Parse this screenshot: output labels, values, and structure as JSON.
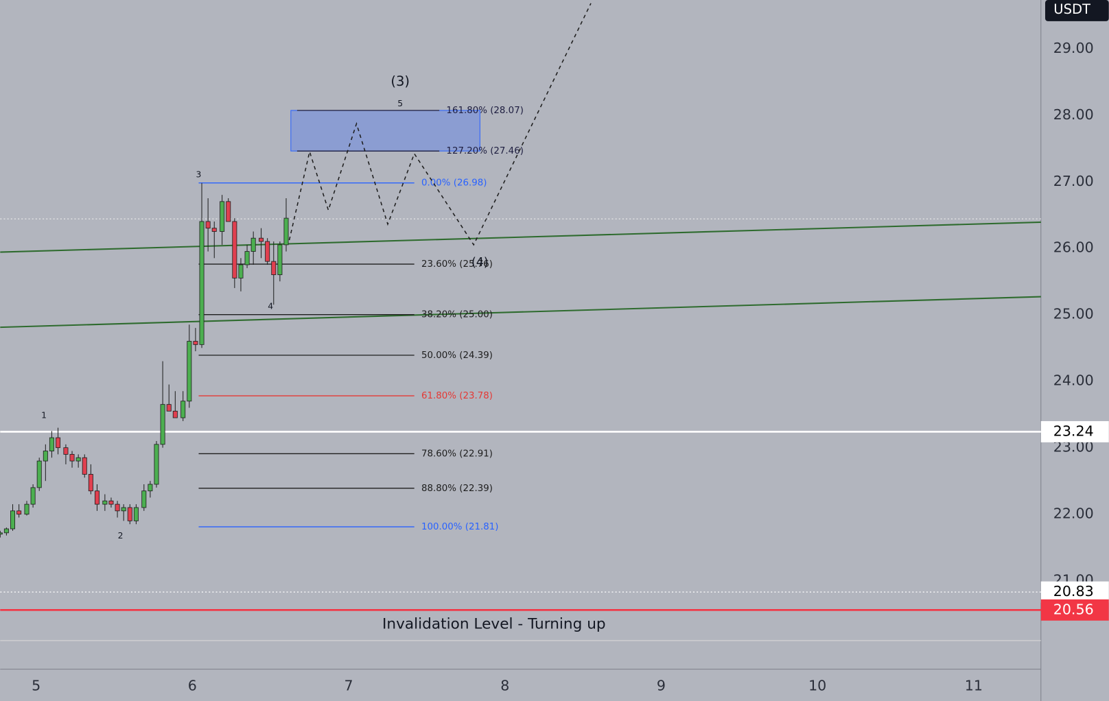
{
  "chart_data": {
    "type": "candlestick",
    "currency": "USDT",
    "xlim": [
      4.77,
      11.43
    ],
    "ylim": [
      19.67,
      29.73
    ],
    "xticks": [
      5,
      6,
      7,
      8,
      9,
      10,
      11
    ],
    "yticks": [
      {
        "value": 21,
        "label": "21.00"
      },
      {
        "value": 22,
        "label": "22.00"
      },
      {
        "value": 23,
        "label": "23.00"
      },
      {
        "value": 24,
        "label": "24.00"
      },
      {
        "value": 25,
        "label": "25.00"
      },
      {
        "value": 26,
        "label": "26.00"
      },
      {
        "value": 27,
        "label": "27.00"
      },
      {
        "value": 28,
        "label": "28.00"
      },
      {
        "value": 29,
        "label": "29.00"
      }
    ],
    "up_color": "#4caf50",
    "down_color": "#e04050",
    "wick_color": "#1e1e1e",
    "candles": {
      "x": [
        4.77,
        4.81,
        4.85,
        4.89,
        4.94,
        4.98,
        5.02,
        5.06,
        5.1,
        5.14,
        5.19,
        5.23,
        5.27,
        5.31,
        5.35,
        5.39,
        5.44,
        5.48,
        5.52,
        5.56,
        5.6,
        5.64,
        5.69,
        5.73,
        5.77,
        5.81,
        5.85,
        5.89,
        5.94,
        5.98,
        6.02,
        6.06,
        6.1,
        6.14,
        6.19,
        6.23,
        6.27,
        6.31,
        6.35,
        6.39,
        6.44,
        6.48,
        6.52,
        6.56,
        6.6
      ],
      "open": [
        21.7,
        21.72,
        21.78,
        22.05,
        22.0,
        22.15,
        22.4,
        22.8,
        22.95,
        23.15,
        23.0,
        22.9,
        22.8,
        22.85,
        22.6,
        22.35,
        22.15,
        22.2,
        22.15,
        22.05,
        22.1,
        21.9,
        22.1,
        22.35,
        22.45,
        23.05,
        23.65,
        23.55,
        23.45,
        23.7,
        24.6,
        24.55,
        26.4,
        26.3,
        26.25,
        26.7,
        26.4,
        25.55,
        25.75,
        25.95,
        26.15,
        26.1,
        25.8,
        25.6,
        26.05
      ],
      "high": [
        21.75,
        21.8,
        22.15,
        22.15,
        22.2,
        22.45,
        22.85,
        23.05,
        23.25,
        23.3,
        23.05,
        22.95,
        22.9,
        22.9,
        22.75,
        22.45,
        22.3,
        22.25,
        22.2,
        22.15,
        22.15,
        22.15,
        22.45,
        22.5,
        23.1,
        24.3,
        23.95,
        23.85,
        23.85,
        24.85,
        24.8,
        26.98,
        26.75,
        26.4,
        26.8,
        26.75,
        26.45,
        25.85,
        26.05,
        26.25,
        26.3,
        26.15,
        26.1,
        26.1,
        26.75
      ],
      "low": [
        21.65,
        21.68,
        21.75,
        21.95,
        21.98,
        22.1,
        22.35,
        22.5,
        22.85,
        22.9,
        22.75,
        22.7,
        22.7,
        22.55,
        22.3,
        22.05,
        22.05,
        22.1,
        21.95,
        21.9,
        21.85,
        21.85,
        22.05,
        22.25,
        22.4,
        23.0,
        23.55,
        23.45,
        23.4,
        23.6,
        24.45,
        24.5,
        25.95,
        25.85,
        26.05,
        26.4,
        25.4,
        25.35,
        25.7,
        25.75,
        25.85,
        25.75,
        25.15,
        25.5,
        25.95
      ],
      "close": [
        21.72,
        21.78,
        22.05,
        22.0,
        22.15,
        22.4,
        22.8,
        22.95,
        23.15,
        23.0,
        22.9,
        22.8,
        22.85,
        22.6,
        22.35,
        22.15,
        22.2,
        22.15,
        22.05,
        22.1,
        21.9,
        22.1,
        22.35,
        22.45,
        23.05,
        23.65,
        23.55,
        23.45,
        23.7,
        24.6,
        24.55,
        26.4,
        26.3,
        26.25,
        26.7,
        26.4,
        25.55,
        25.75,
        25.95,
        26.15,
        26.1,
        25.8,
        25.6,
        26.05,
        26.45
      ]
    },
    "fib_levels": [
      {
        "label": "161.80% (28.07)",
        "price": 28.07,
        "color": "#1e1e40",
        "x": [
          6.67,
          7.58
        ]
      },
      {
        "label": "127.20% (27.46)",
        "price": 27.46,
        "color": "#1e1e40",
        "x": [
          6.67,
          7.58
        ]
      },
      {
        "label": "0.00% (26.98)",
        "price": 26.98,
        "color": "#2962ff",
        "x": [
          6.04,
          7.42
        ]
      },
      {
        "label": "23.60% (25.76)",
        "price": 25.76,
        "color": "#1e1e1e",
        "x": [
          6.04,
          7.42
        ]
      },
      {
        "label": "38.20% (25.00)",
        "price": 25.0,
        "color": "#1e1e1e",
        "x": [
          6.04,
          7.42
        ]
      },
      {
        "label": "50.00% (24.39)",
        "price": 24.39,
        "color": "#1e1e1e",
        "x": [
          6.04,
          7.42
        ]
      },
      {
        "label": "61.80% (23.78)",
        "price": 23.78,
        "color": "#e53935",
        "x": [
          6.04,
          7.42
        ]
      },
      {
        "label": "78.60% (22.91)",
        "price": 22.91,
        "color": "#1e1e1e",
        "x": [
          6.04,
          7.42
        ]
      },
      {
        "label": "88.80% (22.39)",
        "price": 22.39,
        "color": "#1e1e1e",
        "x": [
          6.04,
          7.42
        ]
      },
      {
        "label": "100.00% (21.81)",
        "price": 21.81,
        "color": "#2962ff",
        "x": [
          6.04,
          7.42
        ]
      }
    ],
    "target_box": {
      "x": [
        6.63,
        7.84
      ],
      "y": [
        27.46,
        28.07
      ],
      "color": "#7d95d8"
    },
    "channel": [
      {
        "x": [
          4.77,
          11.43
        ],
        "y": [
          25.94,
          26.39
        ],
        "color": "#2e6b2e"
      },
      {
        "x": [
          4.77,
          11.43
        ],
        "y": [
          24.81,
          25.27
        ],
        "color": "#2e6b2e"
      }
    ],
    "projection": {
      "x": [
        6.62,
        6.75,
        6.87,
        7.05,
        7.25,
        7.42,
        7.8,
        8.55
      ],
      "y": [
        26.12,
        27.45,
        26.57,
        27.87,
        26.36,
        27.42,
        26.05,
        29.68
      ],
      "color": "#1e1e1e"
    },
    "price_lines": [
      {
        "value": 26.44,
        "color": "#e8e8e8",
        "style": "dotted"
      },
      {
        "value": 23.24,
        "label": "23.24",
        "color": "#ffffff",
        "style": "solid",
        "text_color": "#000000"
      },
      {
        "value": 20.83,
        "label": "20.83",
        "color": "#ffffff",
        "style": "dotted",
        "text_color": "#000000"
      },
      {
        "value": 20.56,
        "label": "20.56",
        "color": "#f23645",
        "style": "solid",
        "text_color": "#ffffff"
      },
      {
        "value": 20.1,
        "color": "#d8d8d8",
        "style": "solid"
      }
    ],
    "annotations": [
      {
        "text": "(3)",
        "x": 7.33,
        "y": 28.5,
        "size": 19
      },
      {
        "text": "5",
        "x": 7.33,
        "y": 28.17,
        "size": 12
      },
      {
        "text": "3",
        "x": 6.04,
        "y": 27.1,
        "size": 12
      },
      {
        "text": "4",
        "x": 6.5,
        "y": 25.12,
        "size": 12
      },
      {
        "text": "(4)",
        "x": 7.84,
        "y": 25.78,
        "size": 17
      },
      {
        "text": "1",
        "x": 5.05,
        "y": 23.48,
        "size": 12
      },
      {
        "text": "2",
        "x": 5.54,
        "y": 21.67,
        "size": 12
      },
      {
        "text": "Invalidation Level - Turning up",
        "x": 7.93,
        "y": 20.34,
        "size": 21
      }
    ]
  }
}
